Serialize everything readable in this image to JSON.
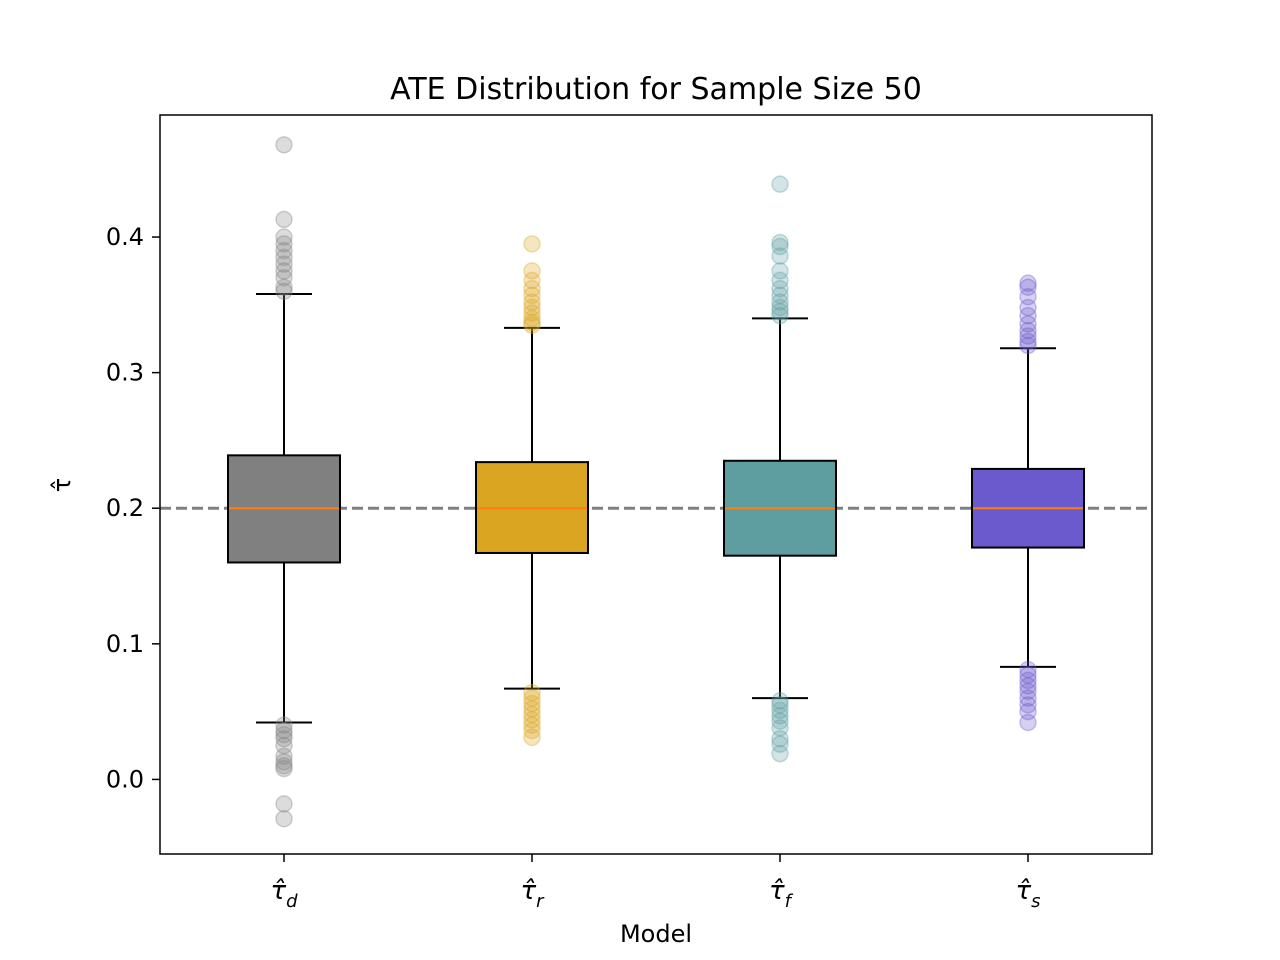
{
  "chart_data": {
    "type": "box",
    "title": "ATE Distribution for Sample Size 50",
    "xlabel": "Model",
    "ylabel": "τ̂",
    "ylim": [
      -0.055,
      0.49
    ],
    "yticks": [
      "0.0",
      "0.1",
      "0.2",
      "0.3",
      "0.4"
    ],
    "reference_line": {
      "y": 0.2,
      "style": "dashed",
      "color": "#808080"
    },
    "grid": false,
    "legend": "none",
    "median_color": "#ff7f0e",
    "categories": [
      {
        "base": "τ̂",
        "sub": "d",
        "color": "#808080",
        "whisker_low": 0.042,
        "q1": 0.16,
        "median": 0.2,
        "q3": 0.239,
        "whisker_high": 0.358,
        "outliers": [
          0.468,
          0.413,
          0.4,
          0.395,
          0.39,
          0.385,
          0.38,
          0.375,
          0.37,
          0.363,
          0.36,
          0.04,
          0.036,
          0.033,
          0.03,
          0.025,
          0.017,
          0.013,
          0.01,
          0.008,
          -0.018,
          -0.029
        ]
      },
      {
        "base": "τ̂",
        "sub": "r",
        "color": "#daa520",
        "whisker_low": 0.067,
        "q1": 0.167,
        "median": 0.2,
        "q3": 0.234,
        "whisker_high": 0.333,
        "outliers": [
          0.395,
          0.375,
          0.368,
          0.362,
          0.357,
          0.352,
          0.348,
          0.344,
          0.34,
          0.337,
          0.335,
          0.064,
          0.06,
          0.056,
          0.052,
          0.048,
          0.044,
          0.04,
          0.036,
          0.031
        ]
      },
      {
        "base": "τ̂",
        "sub": "f",
        "color": "#5f9ea0",
        "whisker_low": 0.06,
        "q1": 0.165,
        "median": 0.2,
        "q3": 0.235,
        "whisker_high": 0.34,
        "outliers": [
          0.439,
          0.396,
          0.393,
          0.386,
          0.375,
          0.368,
          0.362,
          0.357,
          0.352,
          0.348,
          0.345,
          0.342,
          0.058,
          0.055,
          0.051,
          0.047,
          0.043,
          0.038,
          0.03,
          0.026,
          0.019
        ]
      },
      {
        "base": "τ̂",
        "sub": "s",
        "color": "#6a5acd",
        "whisker_low": 0.083,
        "q1": 0.171,
        "median": 0.2,
        "q3": 0.229,
        "whisker_high": 0.318,
        "outliers": [
          0.366,
          0.363,
          0.356,
          0.348,
          0.342,
          0.336,
          0.331,
          0.327,
          0.323,
          0.32,
          0.081,
          0.077,
          0.073,
          0.069,
          0.065,
          0.06,
          0.055,
          0.05,
          0.042
        ]
      }
    ]
  }
}
